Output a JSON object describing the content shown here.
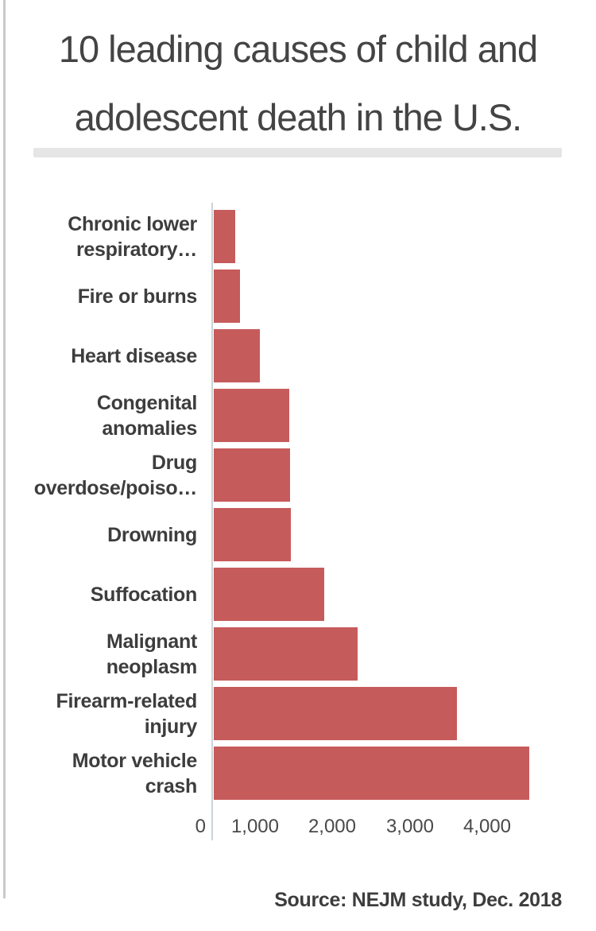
{
  "page": {
    "title_line1": "10 leading causes of child and",
    "title_line2": "adolescent death in the U.S.",
    "source": "Source: NEJM study, Dec. 2018"
  },
  "colors": {
    "bar": "#c65b5b",
    "axis_line": "#ccd3d6",
    "title_text": "#444444",
    "label_text": "#3d3d3d",
    "tick_text": "#494949",
    "divider": "#e5e5e5",
    "left_border": "#c9c9c9",
    "background": "#ffffff"
  },
  "chart_data": {
    "type": "bar",
    "orientation": "horizontal",
    "title": "10 leading causes of child and adolescent death in the U.S.",
    "source": "Source: NEJM study, Dec. 2018",
    "xlabel": "",
    "ylabel": "",
    "xlim": [
      0,
      4500
    ],
    "grid": false,
    "legend": false,
    "bar_color": "#c65b5b",
    "ticks": [
      {
        "value": 0,
        "label": "0"
      },
      {
        "value": 1000,
        "label": "1,000"
      },
      {
        "value": 2000,
        "label": "2,000"
      },
      {
        "value": 3000,
        "label": "3,000"
      },
      {
        "value": 4000,
        "label": "4,000"
      }
    ],
    "rows": [
      {
        "label": "Chronic lower respiratory…",
        "label_lines": [
          "Chronic lower",
          "respiratory…"
        ],
        "value": 274
      },
      {
        "label": "Fire or burns",
        "label_lines": [
          "Fire or burns"
        ],
        "value": 340
      },
      {
        "label": "Heart disease",
        "label_lines": [
          "Heart disease"
        ],
        "value": 599
      },
      {
        "label": "Congenital anomalies",
        "label_lines": [
          "Congenital",
          "anomalies"
        ],
        "value": 979
      },
      {
        "label": "Drug overdose/poiso…",
        "label_lines": [
          "Drug",
          "overdose/poiso…"
        ],
        "value": 982
      },
      {
        "label": "Drowning",
        "label_lines": [
          "Drowning"
        ],
        "value": 995
      },
      {
        "label": "Suffocation",
        "label_lines": [
          "Suffocation"
        ],
        "value": 1430
      },
      {
        "label": "Malignant neoplasm",
        "label_lines": [
          "Malignant",
          "neoplasm"
        ],
        "value": 1853
      },
      {
        "label": "Firearm-related injury",
        "label_lines": [
          "Firearm-related",
          "injury"
        ],
        "value": 3143
      },
      {
        "label": "Motor vehicle crash",
        "label_lines": [
          "Motor vehicle",
          "crash"
        ],
        "value": 4074
      }
    ]
  }
}
